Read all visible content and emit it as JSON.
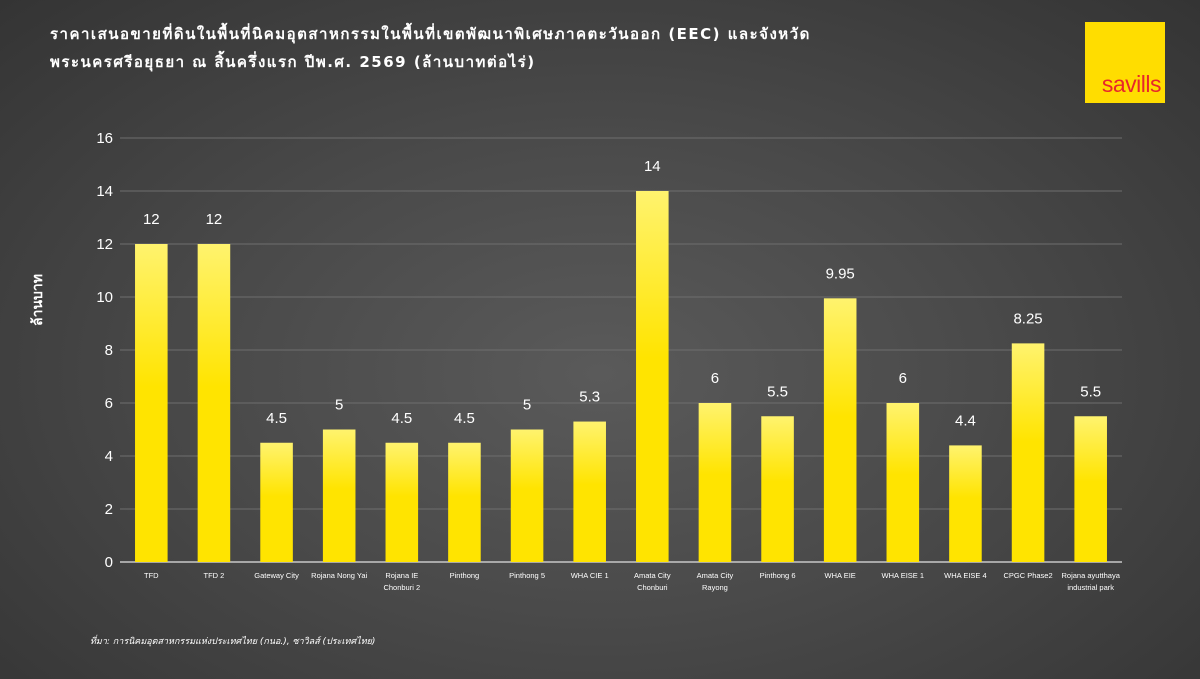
{
  "title_line1": "ราคาเสนอขายที่ดินในพื้นที่นิคมอุตสาหกรรมในพื้นที่เขตพัฒนาพิเศษภาคตะวันออก (EEC) และจังหวัด",
  "title_line2": "พระนครศรีอยุธยา ณ สิ้นครึ่งแรก ปีพ.ศ. 2569  (ล้านบาทต่อไร่)",
  "logo_text": "savills",
  "source": "ที่มา: การนิคมอุตสาหกรรมแห่งประเทศไทย (กนอ.), ซาวิลส์ (ประเทศไทย)",
  "colors": {
    "bar": "#ffe400",
    "bar_light": "#fff16a",
    "logo_bg": "#ffdd00",
    "logo_text": "#e8262b",
    "grid": "#6e6e6e"
  },
  "chart_data": {
    "type": "bar",
    "title": "ราคาเสนอขายที่ดินในพื้นที่นิคมอุตสาหกรรมในพื้นที่เขตพัฒนาพิเศษภาคตะวันออก (EEC) และจังหวัดพระนครศรีอยุธยา ณ สิ้นครึ่งแรก ปีพ.ศ. 2569  (ล้านบาทต่อไร่)",
    "xlabel": "",
    "ylabel": "ล้านบาท",
    "ylim": [
      0,
      16
    ],
    "yticks": [
      0,
      2,
      4,
      6,
      8,
      10,
      12,
      14,
      16
    ],
    "grid": true,
    "categories": [
      [
        "TFD"
      ],
      [
        "TFD 2"
      ],
      [
        "Gateway City"
      ],
      [
        "Rojana Nong Yai"
      ],
      [
        "Rojana IE",
        "Chonburi 2"
      ],
      [
        "Pinthong"
      ],
      [
        "Pinthong 5"
      ],
      [
        "WHA CIE 1"
      ],
      [
        "Amata City",
        "Chonburi"
      ],
      [
        "Amata City",
        "Rayong"
      ],
      [
        "Pinthong 6"
      ],
      [
        "WHA EIE"
      ],
      [
        "WHA EISE 1"
      ],
      [
        "WHA EISE 4"
      ],
      [
        "CPGC Phase2"
      ],
      [
        "Rojana ayutthaya",
        "industrial park"
      ]
    ],
    "values": [
      12,
      12,
      4.5,
      5,
      4.5,
      4.5,
      5,
      5.3,
      14,
      6,
      5.5,
      9.95,
      6,
      4.4,
      8.25,
      5.5
    ],
    "data_labels": [
      "12",
      "12",
      "4.5",
      "5",
      "4.5",
      "4.5",
      "5",
      "5.3",
      "14",
      "6",
      "5.5",
      "9.95",
      "6",
      "4.4",
      "8.25",
      "5.5"
    ]
  }
}
